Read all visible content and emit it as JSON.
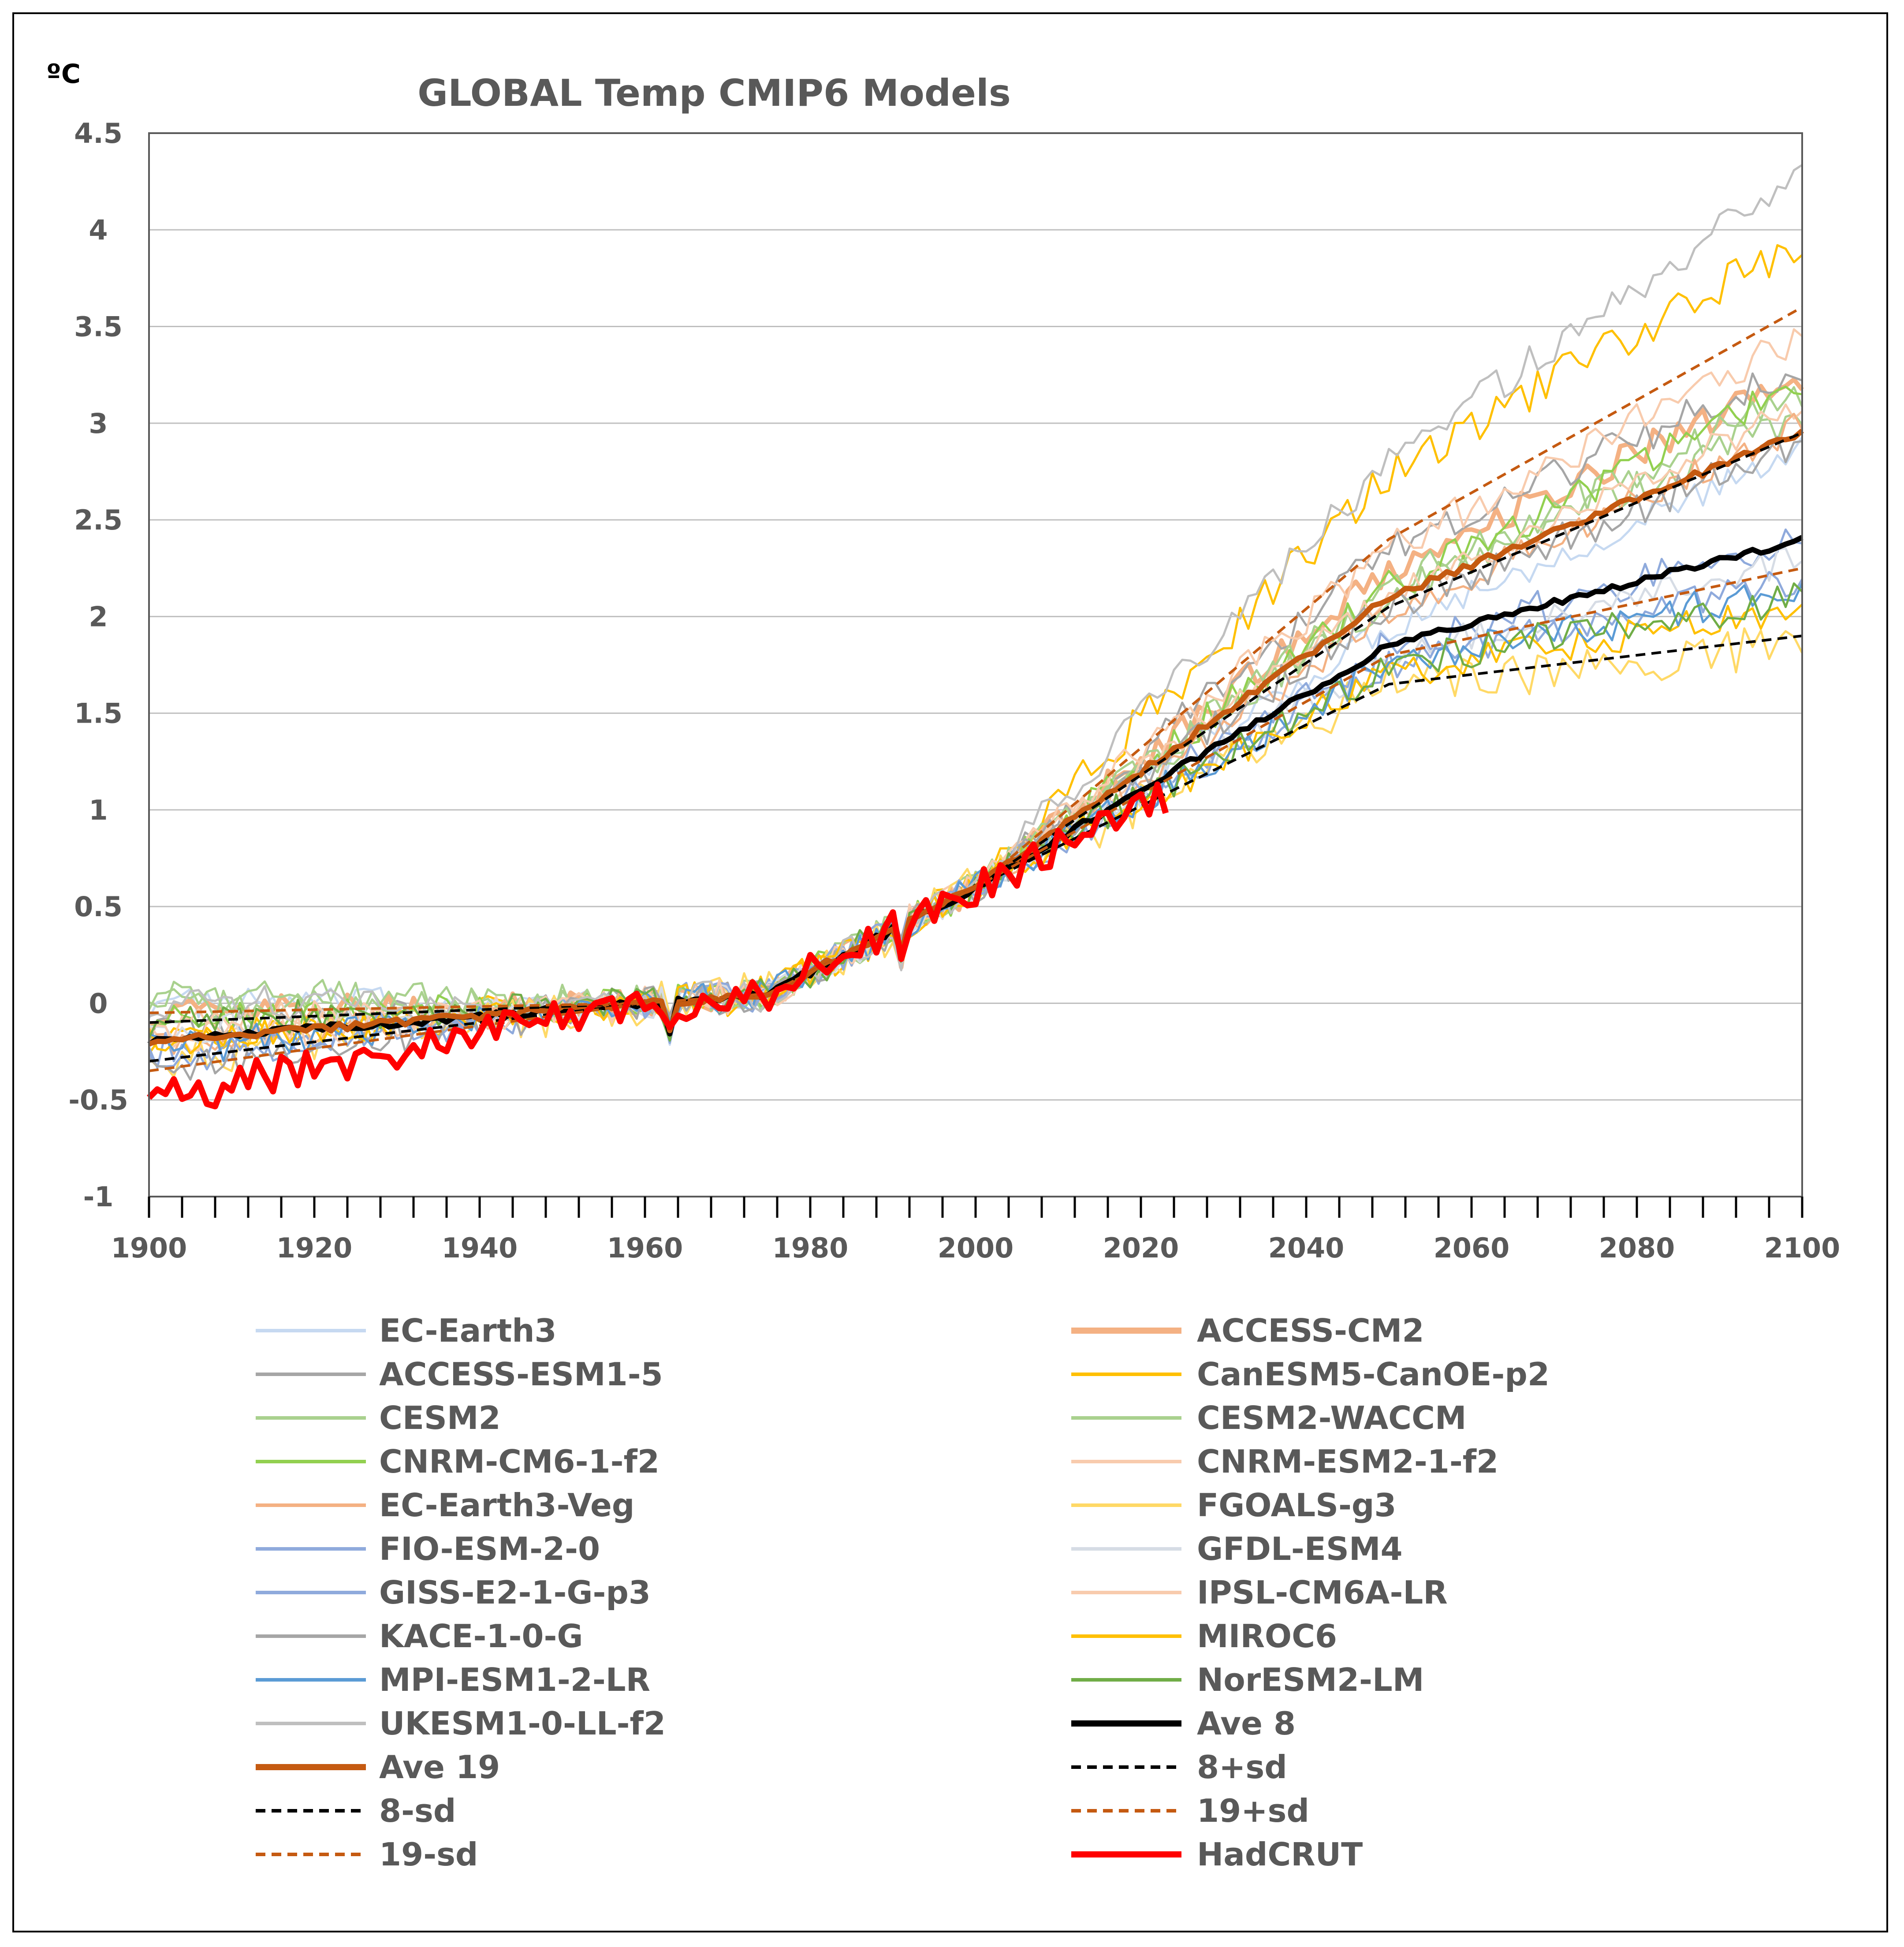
{
  "chart_data": {
    "type": "line",
    "title": "GLOBAL Temp CMIP6 Models",
    "ylabel": "ºC",
    "xlabel": "",
    "xlim": [
      1900,
      2100
    ],
    "ylim": [
      -1,
      4.5
    ],
    "x_ticks": [
      1900,
      1920,
      1940,
      1960,
      1980,
      2000,
      2020,
      2040,
      2060,
      2080,
      2100
    ],
    "x_tick_labels": [
      "1900",
      "1920",
      "1940",
      "1960",
      "1980",
      "2000",
      "2020",
      "2040",
      "2060",
      "2080",
      "2100"
    ],
    "y_ticks": [
      -1,
      -0.5,
      0,
      0.5,
      1,
      1.5,
      2,
      2.5,
      3,
      3.5,
      4,
      4.5
    ],
    "y_tick_labels": [
      "-1",
      "-0.5",
      "0",
      "0.5",
      "1",
      "1.5",
      "2",
      "2.5",
      "3",
      "3.5",
      "4",
      "4.5"
    ],
    "grid": "horizontal",
    "legend_position": "bottom",
    "series": [
      {
        "name": "EC-Earth3",
        "color": "#c6d9f1",
        "width": 5,
        "dash": "",
        "offset": 0.0,
        "final": 2.85,
        "mid": 1.2,
        "noise": 0.08,
        "end": 2100
      },
      {
        "name": "ACCESS-CM2",
        "color": "#f4b183",
        "width": 10,
        "dash": "",
        "offset": -0.05,
        "final": 3.25,
        "mid": 1.5,
        "noise": 0.08,
        "end": 2100
      },
      {
        "name": "ACCESS-ESM1-5",
        "color": "#a6a6a6",
        "width": 5,
        "dash": "",
        "offset": -0.15,
        "final": 3.3,
        "mid": 1.6,
        "noise": 0.09,
        "end": 2100
      },
      {
        "name": "CanESM5-CanOE-p2",
        "color": "#ffc000",
        "width": 5,
        "dash": "",
        "offset": -0.2,
        "final": 3.95,
        "mid": 2.0,
        "noise": 0.1,
        "end": 2100
      },
      {
        "name": "CESM2",
        "color": "#a9d18e",
        "width": 5,
        "dash": "",
        "offset": 0.05,
        "final": 3.15,
        "mid": 1.4,
        "noise": 0.09,
        "end": 2100
      },
      {
        "name": "CESM2-WACCM",
        "color": "#a9d18e",
        "width": 5,
        "dash": "",
        "offset": 0.0,
        "final": 3.05,
        "mid": 1.35,
        "noise": 0.09,
        "end": 2100
      },
      {
        "name": "CNRM-CM6-1-f2",
        "color": "#92d050",
        "width": 5,
        "dash": "",
        "offset": -0.1,
        "final": 3.2,
        "mid": 1.4,
        "noise": 0.09,
        "end": 2100
      },
      {
        "name": "CNRM-ESM2-1-f2",
        "color": "#f8cbad",
        "width": 5,
        "dash": "",
        "offset": -0.1,
        "final": 3.1,
        "mid": 1.35,
        "noise": 0.08,
        "end": 2100
      },
      {
        "name": "EC-Earth3-Veg",
        "color": "#f4b183",
        "width": 5,
        "dash": "",
        "offset": -0.2,
        "final": 3.0,
        "mid": 1.25,
        "noise": 0.08,
        "end": 2100
      },
      {
        "name": "FGOALS-g3",
        "color": "#ffd966",
        "width": 5,
        "dash": "",
        "offset": -0.3,
        "final": 1.85,
        "mid": 0.9,
        "noise": 0.12,
        "end": 2100
      },
      {
        "name": "FIO-ESM-2-0",
        "color": "#8faadc",
        "width": 5,
        "dash": "",
        "offset": -0.25,
        "final": 2.4,
        "mid": 1.1,
        "noise": 0.09,
        "end": 2100
      },
      {
        "name": "GFDL-ESM4",
        "color": "#d6dce5",
        "width": 5,
        "dash": "",
        "offset": -0.15,
        "final": 2.3,
        "mid": 1.05,
        "noise": 0.08,
        "end": 2100
      },
      {
        "name": "GISS-E2-1-G-p3",
        "color": "#8faadc",
        "width": 5,
        "dash": "",
        "offset": -0.3,
        "final": 2.2,
        "mid": 1.0,
        "noise": 0.08,
        "end": 2100
      },
      {
        "name": "IPSL-CM6A-LR",
        "color": "#f8cbad",
        "width": 5,
        "dash": "",
        "offset": -0.2,
        "final": 3.45,
        "mid": 1.6,
        "noise": 0.09,
        "end": 2100
      },
      {
        "name": "KACE-1-0-G",
        "color": "#a6a6a6",
        "width": 5,
        "dash": "",
        "offset": -0.35,
        "final": 2.9,
        "mid": 1.3,
        "noise": 0.09,
        "end": 2100
      },
      {
        "name": "MIROC6",
        "color": "#ffc000",
        "width": 5,
        "dash": "",
        "offset": -0.2,
        "final": 2.05,
        "mid": 0.95,
        "noise": 0.08,
        "end": 2100
      },
      {
        "name": "MPI-ESM1-2-LR",
        "color": "#5b9bd5",
        "width": 5,
        "dash": "",
        "offset": -0.25,
        "final": 2.15,
        "mid": 1.0,
        "noise": 0.09,
        "end": 2100
      },
      {
        "name": "NorESM2-LM",
        "color": "#70ad47",
        "width": 5,
        "dash": "",
        "offset": -0.1,
        "final": 2.1,
        "mid": 1.0,
        "noise": 0.09,
        "end": 2100
      },
      {
        "name": "UKESM1-0-LL-f2",
        "color": "#bfbfbf",
        "width": 5,
        "dash": "",
        "offset": 0.0,
        "final": 4.3,
        "mid": 2.05,
        "noise": 0.09,
        "end": 2100
      },
      {
        "name": "Ave 8",
        "color": "#000000",
        "width": 12,
        "dash": "",
        "offset": -0.2,
        "final": 2.4,
        "mid": 1.1,
        "noise": 0.02,
        "end": 2100
      },
      {
        "name": "Ave 19",
        "color": "#c55a11",
        "width": 12,
        "dash": "",
        "offset": -0.2,
        "final": 2.95,
        "mid": 1.35,
        "noise": 0.02,
        "end": 2100
      },
      {
        "name": "8+sd",
        "color": "#000000",
        "width": 6,
        "dash": "22,14",
        "offset": -0.1,
        "final": 2.95,
        "mid": 1.3,
        "noise": 0.0,
        "end": 2100
      },
      {
        "name": "8-sd",
        "color": "#000000",
        "width": 6,
        "dash": "22,14",
        "offset": -0.3,
        "final": 1.9,
        "mid": 0.9,
        "noise": 0.0,
        "end": 2100
      },
      {
        "name": "19+sd",
        "color": "#c55a11",
        "width": 6,
        "dash": "22,14",
        "offset": -0.05,
        "final": 3.6,
        "mid": 1.65,
        "noise": 0.0,
        "end": 2100
      },
      {
        "name": "19-sd",
        "color": "#c55a11",
        "width": 6,
        "dash": "22,14",
        "offset": -0.35,
        "final": 2.25,
        "mid": 1.05,
        "noise": 0.0,
        "end": 2100
      },
      {
        "name": "HadCRUT",
        "color": "#ff0000",
        "width": 14,
        "dash": "",
        "offset": -0.5,
        "final": 0.9,
        "mid": 0.9,
        "noise": 0.1,
        "end": 2023
      }
    ]
  },
  "legend": {
    "left": [
      {
        "label": "EC-Earth3",
        "color": "#c6d9f1",
        "width": 8,
        "dash": ""
      },
      {
        "label": "ACCESS-ESM1-5",
        "color": "#a6a6a6",
        "width": 8,
        "dash": ""
      },
      {
        "label": "CESM2",
        "color": "#a9d18e",
        "width": 8,
        "dash": ""
      },
      {
        "label": "CNRM-CM6-1-f2",
        "color": "#92d050",
        "width": 8,
        "dash": ""
      },
      {
        "label": "EC-Earth3-Veg",
        "color": "#f4b183",
        "width": 8,
        "dash": ""
      },
      {
        "label": "FIO-ESM-2-0",
        "color": "#8faadc",
        "width": 8,
        "dash": ""
      },
      {
        "label": "GISS-E2-1-G-p3",
        "color": "#8faadc",
        "width": 8,
        "dash": ""
      },
      {
        "label": "KACE-1-0-G",
        "color": "#a6a6a6",
        "width": 8,
        "dash": ""
      },
      {
        "label": "MPI-ESM1-2-LR",
        "color": "#5b9bd5",
        "width": 8,
        "dash": ""
      },
      {
        "label": "UKESM1-0-LL-f2",
        "color": "#bfbfbf",
        "width": 8,
        "dash": ""
      },
      {
        "label": "Ave 19",
        "color": "#c55a11",
        "width": 14,
        "dash": ""
      },
      {
        "label": "8-sd",
        "color": "#000000",
        "width": 8,
        "dash": "22,14"
      },
      {
        "label": "19-sd",
        "color": "#c55a11",
        "width": 8,
        "dash": "22,14"
      }
    ],
    "right": [
      {
        "label": "ACCESS-CM2",
        "color": "#f4b183",
        "width": 14,
        "dash": ""
      },
      {
        "label": "CanESM5-CanOE-p2",
        "color": "#ffc000",
        "width": 8,
        "dash": ""
      },
      {
        "label": "CESM2-WACCM",
        "color": "#a9d18e",
        "width": 8,
        "dash": ""
      },
      {
        "label": "CNRM-ESM2-1-f2",
        "color": "#f8cbad",
        "width": 8,
        "dash": ""
      },
      {
        "label": "FGOALS-g3",
        "color": "#ffd966",
        "width": 8,
        "dash": ""
      },
      {
        "label": "GFDL-ESM4",
        "color": "#d6dce5",
        "width": 8,
        "dash": ""
      },
      {
        "label": "IPSL-CM6A-LR",
        "color": "#f8cbad",
        "width": 8,
        "dash": ""
      },
      {
        "label": "MIROC6",
        "color": "#ffc000",
        "width": 8,
        "dash": ""
      },
      {
        "label": "NorESM2-LM",
        "color": "#70ad47",
        "width": 8,
        "dash": ""
      },
      {
        "label": "Ave 8",
        "color": "#000000",
        "width": 14,
        "dash": ""
      },
      {
        "label": "8+sd",
        "color": "#000000",
        "width": 8,
        "dash": "22,14"
      },
      {
        "label": "19+sd",
        "color": "#c55a11",
        "width": 8,
        "dash": "22,14"
      },
      {
        "label": "HadCRUT",
        "color": "#ff0000",
        "width": 14,
        "dash": ""
      }
    ]
  }
}
